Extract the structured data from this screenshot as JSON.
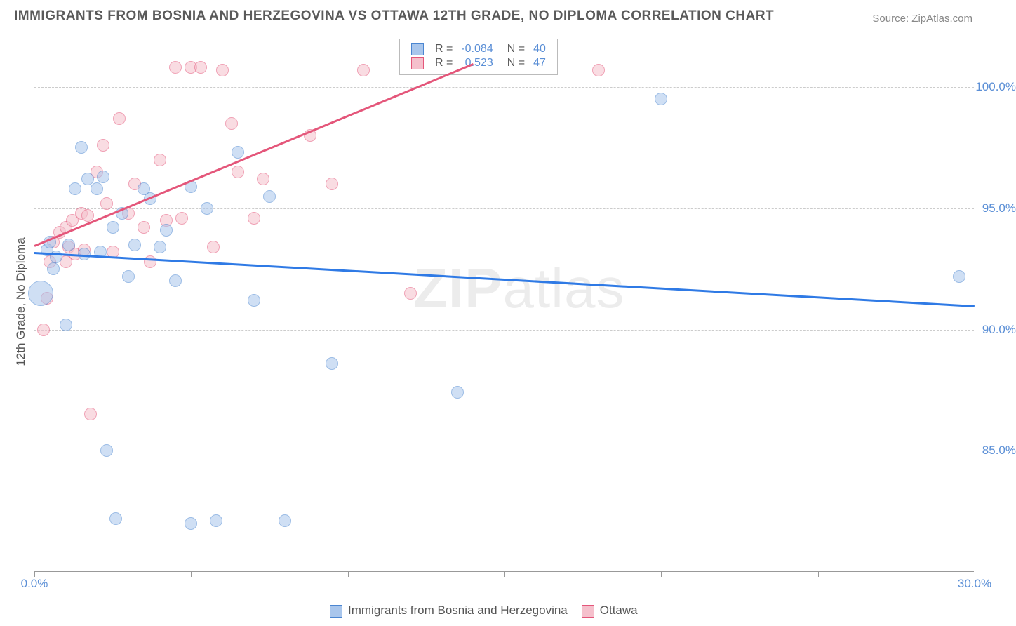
{
  "title": "IMMIGRANTS FROM BOSNIA AND HERZEGOVINA VS OTTAWA 12TH GRADE, NO DIPLOMA CORRELATION CHART",
  "source_label": "Source:",
  "source_name": "ZipAtlas.com",
  "y_axis_label": "12th Grade, No Diploma",
  "watermark_zip": "ZIP",
  "watermark_atlas": "atlas",
  "chart": {
    "type": "scatter",
    "xlim": [
      0,
      30
    ],
    "ylim": [
      80,
      102
    ],
    "x_ticks": [
      0,
      5,
      10,
      15,
      20,
      25,
      30
    ],
    "x_tick_labels": {
      "0": "0.0%",
      "30": "30.0%"
    },
    "y_ticks": [
      85,
      90,
      95,
      100
    ],
    "y_tick_labels": {
      "85": "85.0%",
      "90": "90.0%",
      "95": "95.0%",
      "100": "100.0%"
    },
    "background": "#ffffff",
    "grid_color": "#cccccc",
    "axis_color": "#999999",
    "marker_radius": 9,
    "marker_opacity": 0.55,
    "series": [
      {
        "name": "Immigrants from Bosnia and Herzegovina",
        "color_fill": "#a9c6ec",
        "color_stroke": "#4b86d1",
        "R": "-0.084",
        "N": "40",
        "trend": {
          "x1": 0,
          "y1": 93.2,
          "x2": 30,
          "y2": 91.0,
          "color": "#2f7ae5",
          "width": 2.5
        },
        "points": [
          [
            0.2,
            91.5,
            18
          ],
          [
            0.4,
            93.3,
            9
          ],
          [
            0.5,
            93.6,
            9
          ],
          [
            0.6,
            92.5,
            9
          ],
          [
            0.7,
            93.0,
            9
          ],
          [
            1.0,
            90.2,
            9
          ],
          [
            1.1,
            93.5,
            9
          ],
          [
            1.3,
            95.8,
            9
          ],
          [
            1.5,
            97.5,
            9
          ],
          [
            1.6,
            93.1,
            9
          ],
          [
            1.7,
            96.2,
            9
          ],
          [
            2.0,
            95.8,
            9
          ],
          [
            2.1,
            93.2,
            9
          ],
          [
            2.2,
            96.3,
            9
          ],
          [
            2.3,
            85.0,
            9
          ],
          [
            2.5,
            94.2,
            9
          ],
          [
            2.6,
            82.2,
            9
          ],
          [
            2.8,
            94.8,
            9
          ],
          [
            3.0,
            92.2,
            9
          ],
          [
            3.2,
            93.5,
            9
          ],
          [
            3.5,
            95.8,
            9
          ],
          [
            3.7,
            95.4,
            9
          ],
          [
            4.0,
            93.4,
            9
          ],
          [
            4.2,
            94.1,
            9
          ],
          [
            4.5,
            92.0,
            9
          ],
          [
            5.0,
            95.9,
            9
          ],
          [
            5.0,
            82.0,
            9
          ],
          [
            5.5,
            95.0,
            9
          ],
          [
            5.8,
            82.1,
            9
          ],
          [
            6.5,
            97.3,
            9
          ],
          [
            7.0,
            91.2,
            9
          ],
          [
            7.5,
            95.5,
            9
          ],
          [
            8.0,
            82.1,
            9
          ],
          [
            9.5,
            88.6,
            9
          ],
          [
            13.5,
            87.4,
            9
          ],
          [
            20.0,
            99.5,
            9
          ],
          [
            29.5,
            92.2,
            9
          ]
        ]
      },
      {
        "name": "Ottawa",
        "color_fill": "#f5c0cc",
        "color_stroke": "#e4567a",
        "R": "0.523",
        "N": "47",
        "trend": {
          "x1": 0,
          "y1": 93.5,
          "x2": 14,
          "y2": 101.0,
          "color": "#e4567a",
          "width": 2.5
        },
        "points": [
          [
            0.3,
            90.0,
            9
          ],
          [
            0.4,
            91.3,
            9
          ],
          [
            0.5,
            92.8,
            9
          ],
          [
            0.6,
            93.6,
            9
          ],
          [
            0.8,
            94.0,
            9
          ],
          [
            1.0,
            94.2,
            9
          ],
          [
            1.0,
            92.8,
            9
          ],
          [
            1.1,
            93.4,
            9
          ],
          [
            1.2,
            94.5,
            9
          ],
          [
            1.3,
            93.1,
            9
          ],
          [
            1.5,
            94.8,
            9
          ],
          [
            1.6,
            93.3,
            9
          ],
          [
            1.7,
            94.7,
            9
          ],
          [
            1.8,
            86.5,
            9
          ],
          [
            2.0,
            96.5,
            9
          ],
          [
            2.2,
            97.6,
            9
          ],
          [
            2.3,
            95.2,
            9
          ],
          [
            2.5,
            93.2,
            9
          ],
          [
            2.7,
            98.7,
            9
          ],
          [
            3.0,
            94.8,
            9
          ],
          [
            3.2,
            96.0,
            9
          ],
          [
            3.5,
            94.2,
            9
          ],
          [
            3.7,
            92.8,
            9
          ],
          [
            4.0,
            97.0,
            9
          ],
          [
            4.2,
            94.5,
            9
          ],
          [
            4.5,
            100.8,
            9
          ],
          [
            4.7,
            94.6,
            9
          ],
          [
            5.0,
            100.8,
            9
          ],
          [
            5.3,
            100.8,
            9
          ],
          [
            5.7,
            93.4,
            9
          ],
          [
            6.0,
            100.7,
            9
          ],
          [
            6.3,
            98.5,
            9
          ],
          [
            6.5,
            96.5,
            9
          ],
          [
            7.0,
            94.6,
            9
          ],
          [
            7.3,
            96.2,
            9
          ],
          [
            8.8,
            98.0,
            9
          ],
          [
            9.5,
            96.0,
            9
          ],
          [
            10.5,
            100.7,
            9
          ],
          [
            12.0,
            91.5,
            9
          ],
          [
            18.0,
            100.7,
            9
          ]
        ]
      }
    ]
  },
  "legend_top": {
    "R_label": "R =",
    "N_label": "N ="
  },
  "bottom_legend": {
    "items": [
      {
        "label": "Immigrants from Bosnia and Herzegovina",
        "fill": "#a9c6ec",
        "stroke": "#4b86d1"
      },
      {
        "label": "Ottawa",
        "fill": "#f5c0cc",
        "stroke": "#e4567a"
      }
    ]
  }
}
